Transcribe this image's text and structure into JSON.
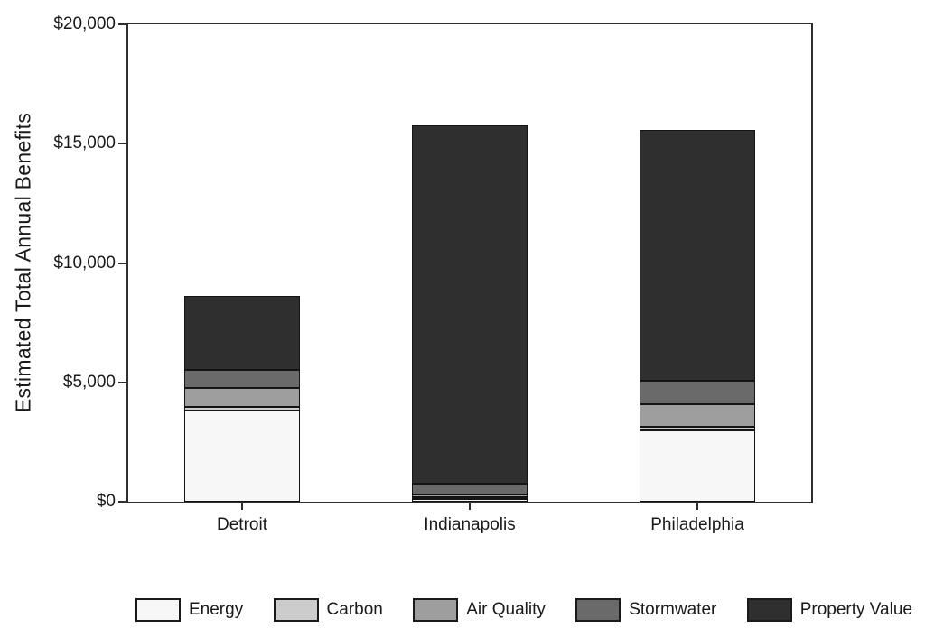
{
  "chart_data": {
    "type": "bar",
    "stacked": true,
    "title": "",
    "xlabel": "",
    "ylabel": "Estimated Total Annual Benefits",
    "categories": [
      "Detroit",
      "Indianapolis",
      "Philadelphia"
    ],
    "series": [
      {
        "name": "Energy",
        "color": "#f7f7f7",
        "values": [
          3800,
          100,
          3000
        ]
      },
      {
        "name": "Carbon",
        "color": "#cccccc",
        "values": [
          150,
          50,
          150
        ]
      },
      {
        "name": "Air Quality",
        "color": "#9e9e9e",
        "values": [
          800,
          100,
          950
        ]
      },
      {
        "name": "Stormwater",
        "color": "#6a6a6a",
        "values": [
          750,
          450,
          1000
        ]
      },
      {
        "name": "Property Value",
        "color": "#2f2f2f",
        "values": [
          3100,
          15000,
          10500
        ]
      }
    ],
    "totals": [
      8600,
      15700,
      15600
    ],
    "ylim": [
      0,
      20000
    ],
    "yticks": [
      {
        "value": 0,
        "label": "$0"
      },
      {
        "value": 5000,
        "label": "$5,000"
      },
      {
        "value": 10000,
        "label": "$10,000"
      },
      {
        "value": 15000,
        "label": "$15,000"
      },
      {
        "value": 20000,
        "label": "$20,000"
      }
    ],
    "legend_position": "bottom",
    "grid": false,
    "colors": {
      "axis": "#2e2e2e",
      "bar_border": "#141414",
      "text": "#1a1a1a",
      "background": "#ffffff"
    }
  }
}
